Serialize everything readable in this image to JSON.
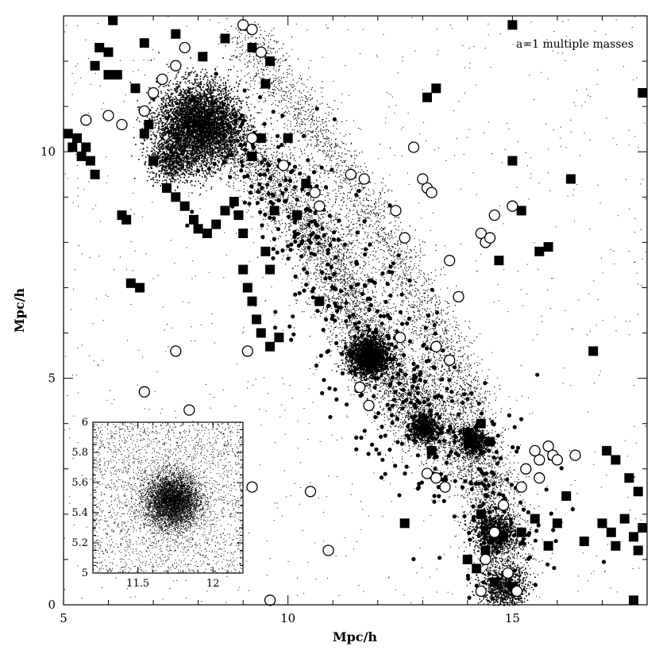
{
  "chart_data": [
    {
      "type": "scatter",
      "title": "",
      "annotation": "a=1 multiple masses",
      "xlabel": "Mpc/h",
      "ylabel": "Mpc/h",
      "xlim": [
        5,
        18
      ],
      "ylim": [
        0,
        13
      ],
      "x_ticks": [
        "5",
        "10",
        "15"
      ],
      "y_ticks": [
        "0",
        "5",
        "10"
      ],
      "series": [
        {
          "marker": "filled-square",
          "points": [
            [
              5.1,
              10.4
            ],
            [
              5.2,
              10.1
            ],
            [
              5.3,
              10.3
            ],
            [
              5.4,
              9.9
            ],
            [
              5.6,
              9.8
            ],
            [
              5.5,
              10.1
            ],
            [
              5.7,
              9.5
            ],
            [
              5.7,
              11.9
            ],
            [
              5.8,
              12.3
            ],
            [
              6.0,
              12.2
            ],
            [
              6.0,
              11.7
            ],
            [
              6.2,
              11.7
            ],
            [
              6.1,
              12.9
            ],
            [
              6.3,
              8.6
            ],
            [
              6.4,
              8.5
            ],
            [
              6.5,
              7.1
            ],
            [
              6.7,
              7.0
            ],
            [
              6.8,
              10.4
            ],
            [
              6.9,
              10.6
            ],
            [
              7.0,
              9.8
            ],
            [
              7.3,
              9.2
            ],
            [
              7.5,
              9.0
            ],
            [
              7.7,
              8.8
            ],
            [
              7.9,
              8.5
            ],
            [
              8.0,
              8.3
            ],
            [
              8.2,
              8.2
            ],
            [
              8.4,
              8.4
            ],
            [
              8.6,
              8.7
            ],
            [
              8.8,
              8.9
            ],
            [
              8.9,
              8.6
            ],
            [
              9.0,
              8.2
            ],
            [
              9.0,
              7.4
            ],
            [
              9.1,
              7.0
            ],
            [
              9.2,
              6.7
            ],
            [
              9.3,
              6.3
            ],
            [
              9.4,
              6.0
            ],
            [
              9.6,
              5.7
            ],
            [
              9.8,
              5.9
            ],
            [
              9.5,
              7.8
            ],
            [
              9.6,
              7.4
            ],
            [
              9.7,
              8.7
            ],
            [
              9.2,
              9.9
            ],
            [
              9.4,
              10.3
            ],
            [
              9.5,
              11.5
            ],
            [
              9.6,
              12.0
            ],
            [
              9.2,
              12.3
            ],
            [
              8.6,
              12.5
            ],
            [
              8.1,
              12.1
            ],
            [
              7.5,
              12.6
            ],
            [
              6.8,
              12.4
            ],
            [
              6.6,
              11.4
            ],
            [
              10.2,
              8.6
            ],
            [
              10.0,
              10.3
            ],
            [
              10.4,
              9.3
            ],
            [
              10.7,
              6.7
            ],
            [
              13.1,
              11.2
            ],
            [
              13.3,
              11.4
            ],
            [
              14.3,
              4.0
            ],
            [
              14.5,
              3.6
            ],
            [
              14.0,
              3.8
            ],
            [
              15.0,
              12.8
            ],
            [
              15.0,
              9.8
            ],
            [
              15.2,
              8.7
            ],
            [
              15.6,
              7.8
            ],
            [
              15.8,
              7.9
            ],
            [
              16.3,
              9.4
            ],
            [
              16.8,
              5.6
            ],
            [
              16.2,
              2.4
            ],
            [
              16.6,
              1.4
            ],
            [
              17.1,
              3.4
            ],
            [
              17.3,
              3.2
            ],
            [
              17.6,
              2.8
            ],
            [
              17.8,
              2.5
            ],
            [
              17.0,
              1.8
            ],
            [
              17.2,
              1.6
            ],
            [
              17.5,
              1.9
            ],
            [
              17.7,
              1.5
            ],
            [
              17.9,
              1.7
            ],
            [
              17.3,
              1.3
            ],
            [
              17.8,
              1.2
            ],
            [
              17.9,
              11.3
            ],
            [
              17.7,
              0.1
            ],
            [
              15.0,
              0.4
            ],
            [
              14.6,
              0.5
            ],
            [
              14.2,
              0.8
            ],
            [
              14.0,
              1.0
            ],
            [
              14.4,
              1.2
            ],
            [
              14.8,
              1.5
            ],
            [
              15.2,
              1.6
            ],
            [
              15.5,
              1.9
            ],
            [
              15.8,
              1.3
            ],
            [
              16.0,
              1.8
            ],
            [
              14.3,
              2.0
            ],
            [
              13.2,
              3.4
            ],
            [
              12.6,
              1.8
            ],
            [
              14.7,
              7.6
            ]
          ]
        },
        {
          "marker": "open-circle",
          "points": [
            [
              5.5,
              10.7
            ],
            [
              6.0,
              10.8
            ],
            [
              6.3,
              10.6
            ],
            [
              6.8,
              10.9
            ],
            [
              7.0,
              11.3
            ],
            [
              7.2,
              11.6
            ],
            [
              7.5,
              11.9
            ],
            [
              7.7,
              12.3
            ],
            [
              9.0,
              12.8
            ],
            [
              9.2,
              12.7
            ],
            [
              9.4,
              12.2
            ],
            [
              9.2,
              10.3
            ],
            [
              9.9,
              9.7
            ],
            [
              10.6,
              9.1
            ],
            [
              10.7,
              8.8
            ],
            [
              11.4,
              9.5
            ],
            [
              11.7,
              9.4
            ],
            [
              12.4,
              8.7
            ],
            [
              12.6,
              8.1
            ],
            [
              12.8,
              10.1
            ],
            [
              13.1,
              9.2
            ],
            [
              13.2,
              9.1
            ],
            [
              13.0,
              9.4
            ],
            [
              13.6,
              7.6
            ],
            [
              13.8,
              6.8
            ],
            [
              14.3,
              8.2
            ],
            [
              14.4,
              8.0
            ],
            [
              14.5,
              8.1
            ],
            [
              14.6,
              8.6
            ],
            [
              15.0,
              8.8
            ],
            [
              13.3,
              5.7
            ],
            [
              13.6,
              5.4
            ],
            [
              12.5,
              5.9
            ],
            [
              11.6,
              4.8
            ],
            [
              11.8,
              4.4
            ],
            [
              9.1,
              5.6
            ],
            [
              9.6,
              0.1
            ],
            [
              9.2,
              2.6
            ],
            [
              10.5,
              2.5
            ],
            [
              10.9,
              1.2
            ],
            [
              7.5,
              5.6
            ],
            [
              6.8,
              4.7
            ],
            [
              7.8,
              4.3
            ],
            [
              13.1,
              2.9
            ],
            [
              13.3,
              2.8
            ],
            [
              13.5,
              2.6
            ],
            [
              15.3,
              3.0
            ],
            [
              15.6,
              3.2
            ],
            [
              15.8,
              3.5
            ],
            [
              15.9,
              3.3
            ],
            [
              15.5,
              3.4
            ],
            [
              16.0,
              3.2
            ],
            [
              16.4,
              3.3
            ],
            [
              15.2,
              2.6
            ],
            [
              15.6,
              2.8
            ],
            [
              14.8,
              2.2
            ],
            [
              14.6,
              1.6
            ],
            [
              14.4,
              1.0
            ],
            [
              14.9,
              0.7
            ],
            [
              15.1,
              0.3
            ],
            [
              14.3,
              0.3
            ]
          ]
        }
      ],
      "inset": {
        "type": "scatter",
        "xlim": [
          11.2,
          12.2
        ],
        "ylim": [
          5,
          6
        ],
        "x_ticks": [
          "11.5",
          "12"
        ],
        "y_ticks": [
          "5",
          "5.2",
          "5.4",
          "5.6",
          "5.8",
          "6"
        ],
        "cluster_center": [
          11.73,
          5.48
        ],
        "points_shown": 9000
      }
    }
  ]
}
